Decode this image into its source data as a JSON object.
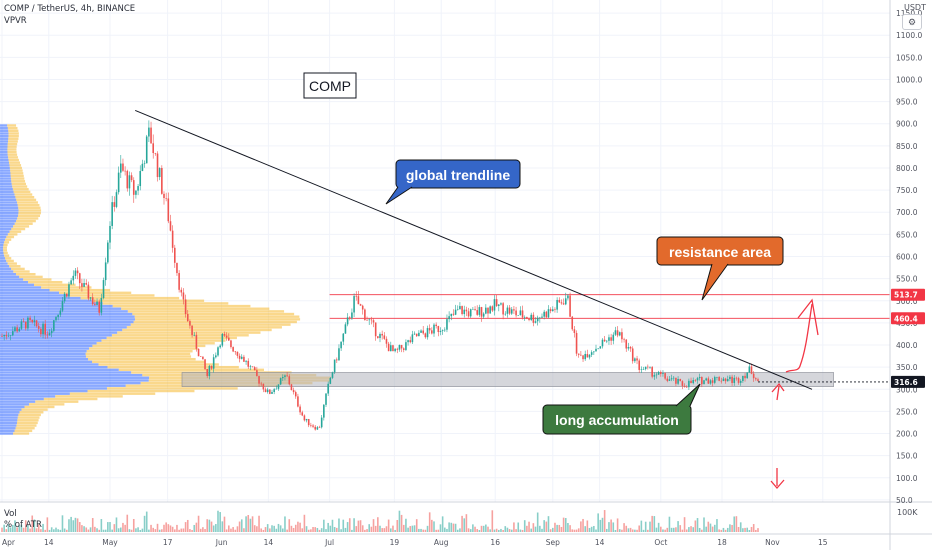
{
  "header": {
    "symbol": "COMP / TetherUS, 4h, BINANCE",
    "indicator": "VPVR"
  },
  "axis": {
    "unit": "USDT",
    "settings_icon": "gear-settings-icon"
  },
  "colors": {
    "up": "#26a69a",
    "down": "#ef5350",
    "support_zone": "#b2b5be",
    "resistance_line": "#f23645",
    "vp_blue": "#2962ff",
    "vp_yellow": "#f5b82e",
    "callout_blue": "#3566c8",
    "callout_orange": "#e26a2c",
    "callout_green": "#3d7a3f",
    "arrow_red": "#f23645"
  },
  "annotations": {
    "title_box": "COMP",
    "trendline_label": "global trendline",
    "resistance_label": "resistance area",
    "accumulation_label": "long accumulation"
  },
  "volume_pane": {
    "label": "Vol",
    "sub_label": "% of ATR",
    "scale_label": "100K"
  },
  "chart_data": {
    "type": "line",
    "title": "",
    "xlabel": "",
    "ylabel": "",
    "x_ticks": [
      "Apr",
      "14",
      "May",
      "17",
      "Jun",
      "14",
      "Jul",
      "19",
      "Aug",
      "16",
      "Sep",
      "14",
      "Oct",
      "18",
      "Nov",
      "15"
    ],
    "y_ticks": [
      "50.0",
      "100.0",
      "150.0",
      "200.0",
      "250.0",
      "300.0",
      "350.0",
      "400.0",
      "450.0",
      "500.0",
      "550.0",
      "600.0",
      "650.0",
      "700.0",
      "750.0",
      "800.0",
      "850.0",
      "900.0",
      "950.0",
      "1000.0",
      "1050.0",
      "1100.0",
      "1150.0"
    ],
    "ylim": [
      25,
      1175
    ],
    "price_labels": [
      {
        "value": 513.7,
        "text": "513.7",
        "color": "#f23645"
      },
      {
        "value": 460.4,
        "text": "460.4",
        "color": "#f23645"
      },
      {
        "value": 316.6,
        "text": "316.6",
        "color": "#131722"
      }
    ],
    "series": [
      {
        "x": [
          "Apr 1",
          "Apr 8",
          "Apr 14",
          "Apr 21",
          "Apr 28",
          "May 1",
          "May 4",
          "May 8",
          "May 12",
          "May 17",
          "May 21",
          "May 24",
          "May 28",
          "Jun 1",
          "Jun 7",
          "Jun 14",
          "Jun 19",
          "Jun 24",
          "Jun 28",
          "Jul 1",
          "Jul 4",
          "Jul 8",
          "Jul 13",
          "Jul 19",
          "Jul 25",
          "Aug 1",
          "Aug 6",
          "Aug 10",
          "Aug 16",
          "Aug 22",
          "Aug 27",
          "Sep 1",
          "Sep 5",
          "Sep 8",
          "Sep 14",
          "Sep 19",
          "Sep 25",
          "Oct 1",
          "Oct 7",
          "Oct 12",
          "Oct 18",
          "Oct 22",
          "Oct 26",
          "Oct 28"
        ],
        "values": [
          420,
          450,
          430,
          560,
          480,
          680,
          800,
          740,
          880,
          700,
          500,
          420,
          330,
          420,
          370,
          290,
          330,
          230,
          210,
          320,
          400,
          505,
          440,
          380,
          420,
          440,
          480,
          470,
          490,
          470,
          460,
          480,
          510,
          370,
          400,
          430,
          350,
          330,
          310,
          320,
          325,
          320,
          345,
          318
        ]
      }
    ],
    "resistance_levels": [
      513.7,
      460.4
    ],
    "support_zone": [
      306,
      338
    ],
    "trendline": {
      "from": {
        "x": "May 8",
        "y": 930
      },
      "to": {
        "x": "Nov 12",
        "y": 300
      }
    }
  }
}
